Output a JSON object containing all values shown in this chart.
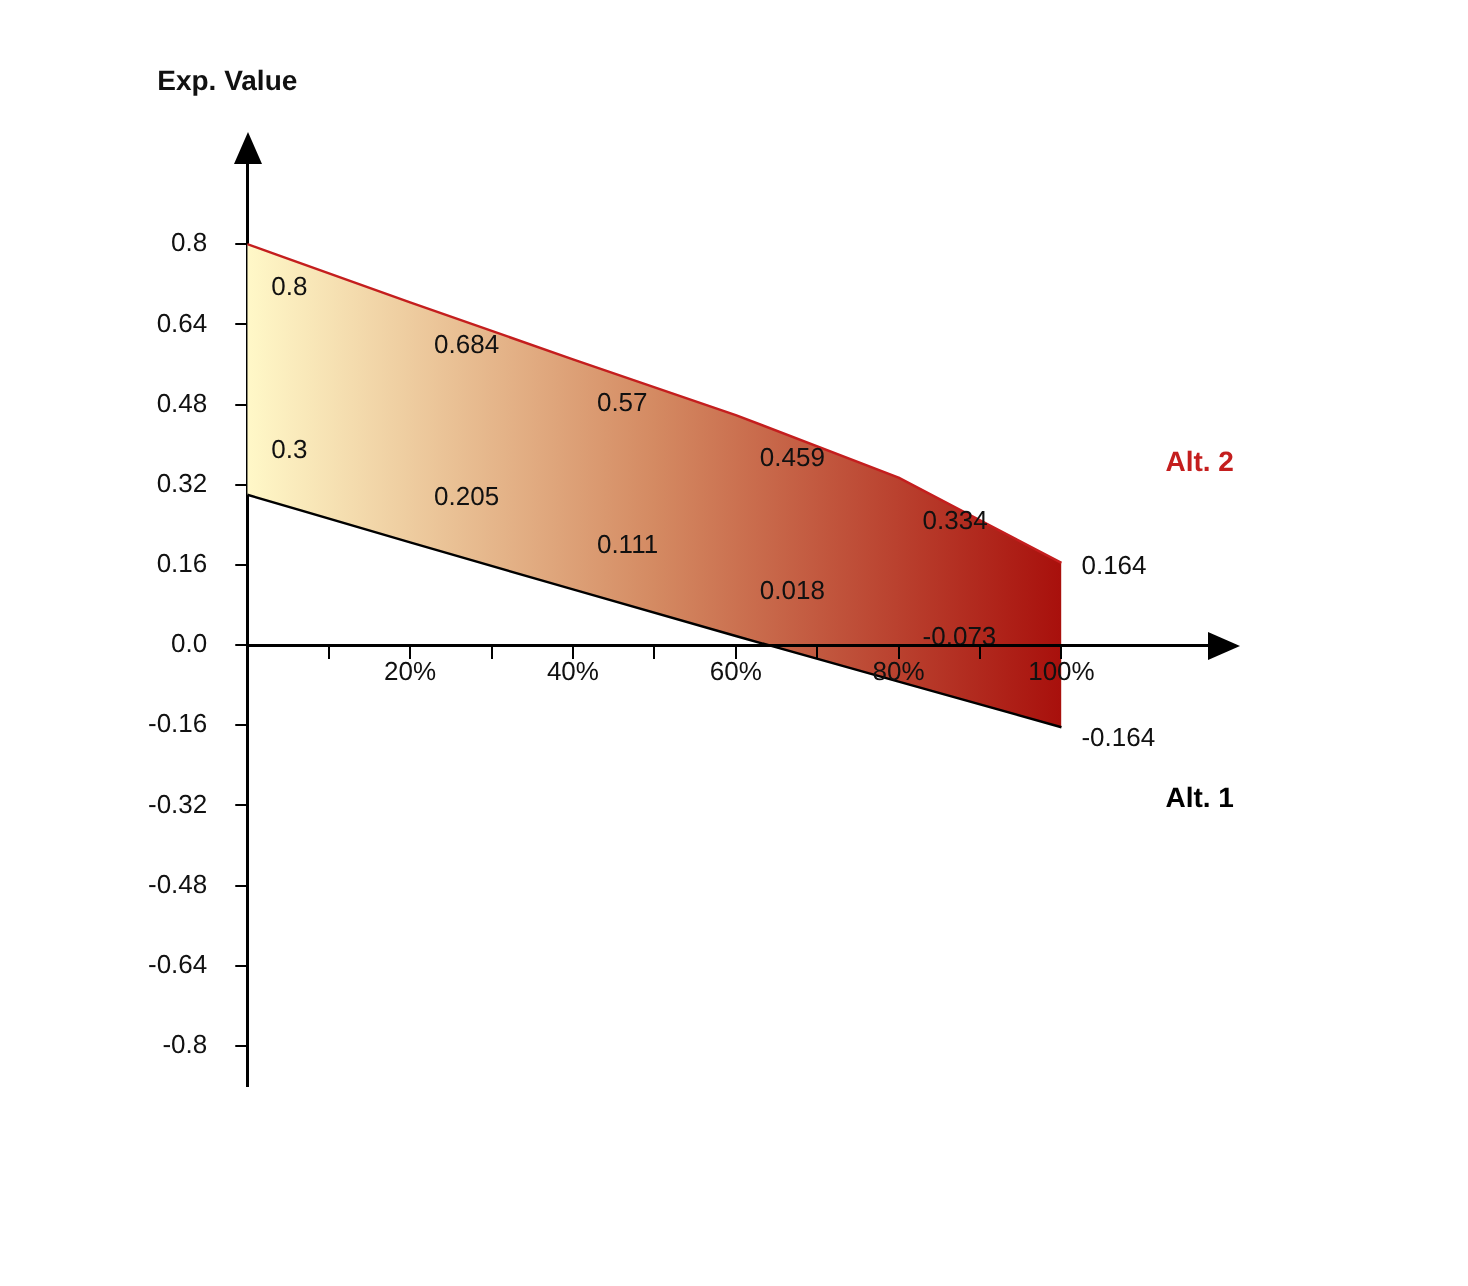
{
  "chart_data": {
    "type": "line",
    "ylabel": "Exp. Value",
    "x": [
      0,
      20,
      40,
      60,
      80,
      100
    ],
    "series": [
      {
        "name": "Alt. 2",
        "color": "#c41e1e",
        "values": [
          0.8,
          0.684,
          0.57,
          0.459,
          0.334,
          0.164
        ],
        "lower": [
          0.3,
          0.205,
          0.111,
          0.018,
          -0.073,
          -0.164
        ],
        "upper": [
          0.8,
          0.684,
          0.57,
          0.459,
          0.334,
          0.164
        ]
      },
      {
        "name": "Alt. 1",
        "color": "#000000",
        "values": [
          0.3,
          0.205,
          0.111,
          0.018,
          -0.073,
          -0.164
        ]
      }
    ],
    "xlim": [
      0,
      118
    ],
    "xticks": [
      {
        "value": 10,
        "label": null
      },
      {
        "value": 20,
        "label": "20%"
      },
      {
        "value": 30,
        "label": null
      },
      {
        "value": 40,
        "label": "40%"
      },
      {
        "value": 50,
        "label": null
      },
      {
        "value": 60,
        "label": "60%"
      },
      {
        "value": 70,
        "label": null
      },
      {
        "value": 80,
        "label": "80%"
      },
      {
        "value": 90,
        "label": null
      },
      {
        "value": 100,
        "label": "100%"
      }
    ],
    "ylim": [
      -0.88,
      0.96
    ],
    "yticks": [
      {
        "value": -0.8,
        "label": "-0.8"
      },
      {
        "value": -0.64,
        "label": "-0.64"
      },
      {
        "value": -0.48,
        "label": "-0.48"
      },
      {
        "value": -0.32,
        "label": "-0.32"
      },
      {
        "value": -0.16,
        "label": "-0.16"
      },
      {
        "value": 0,
        "label": "0.0"
      },
      {
        "value": 0.16,
        "label": "0.16"
      },
      {
        "value": 0.32,
        "label": "0.32"
      },
      {
        "value": 0.48,
        "label": "0.48"
      },
      {
        "value": 0.64,
        "label": "0.64"
      },
      {
        "value": 0.8,
        "label": "0.8"
      }
    ],
    "grid": false,
    "legend": false,
    "marker": "none",
    "line_style": "solid",
    "data_labels": true
  }
}
